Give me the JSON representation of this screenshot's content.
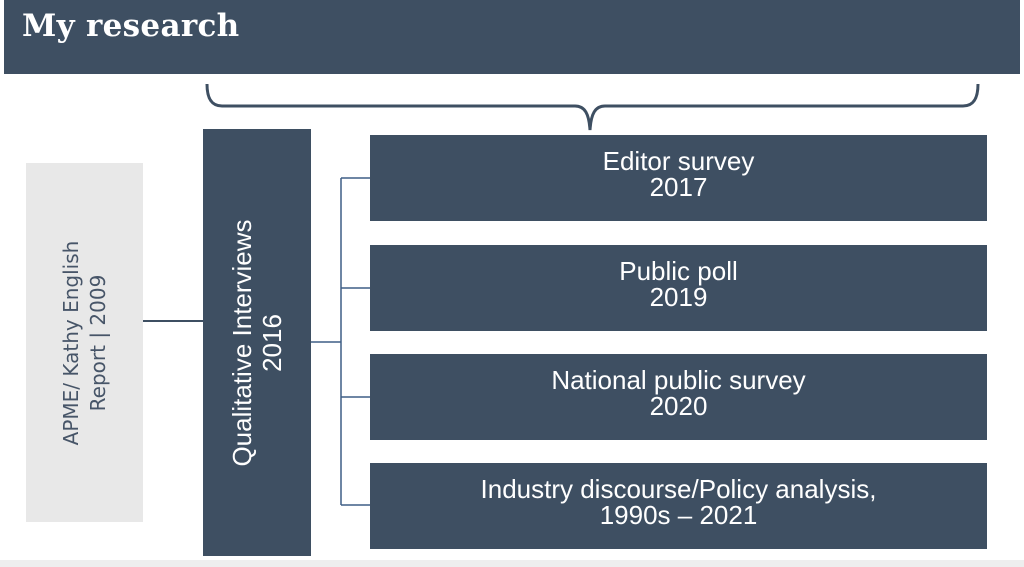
{
  "header": {
    "title": "My research"
  },
  "origin": {
    "line1": "APME/ Kathy English",
    "line2": "Report | 2009"
  },
  "interviews": {
    "line1": "Qualitative Interviews",
    "line2": "2016"
  },
  "studies": [
    {
      "title": "Editor survey",
      "year": "2017"
    },
    {
      "title": "Public poll",
      "year": "2019"
    },
    {
      "title": "National public survey",
      "year": "2020"
    },
    {
      "title": "Industry discourse/Policy analysis,",
      "year": "1990s – 2021"
    }
  ],
  "colors": {
    "primary": "#3e4f62",
    "origin_fill": "#e8e8e8",
    "connector": "#3e5f85"
  }
}
